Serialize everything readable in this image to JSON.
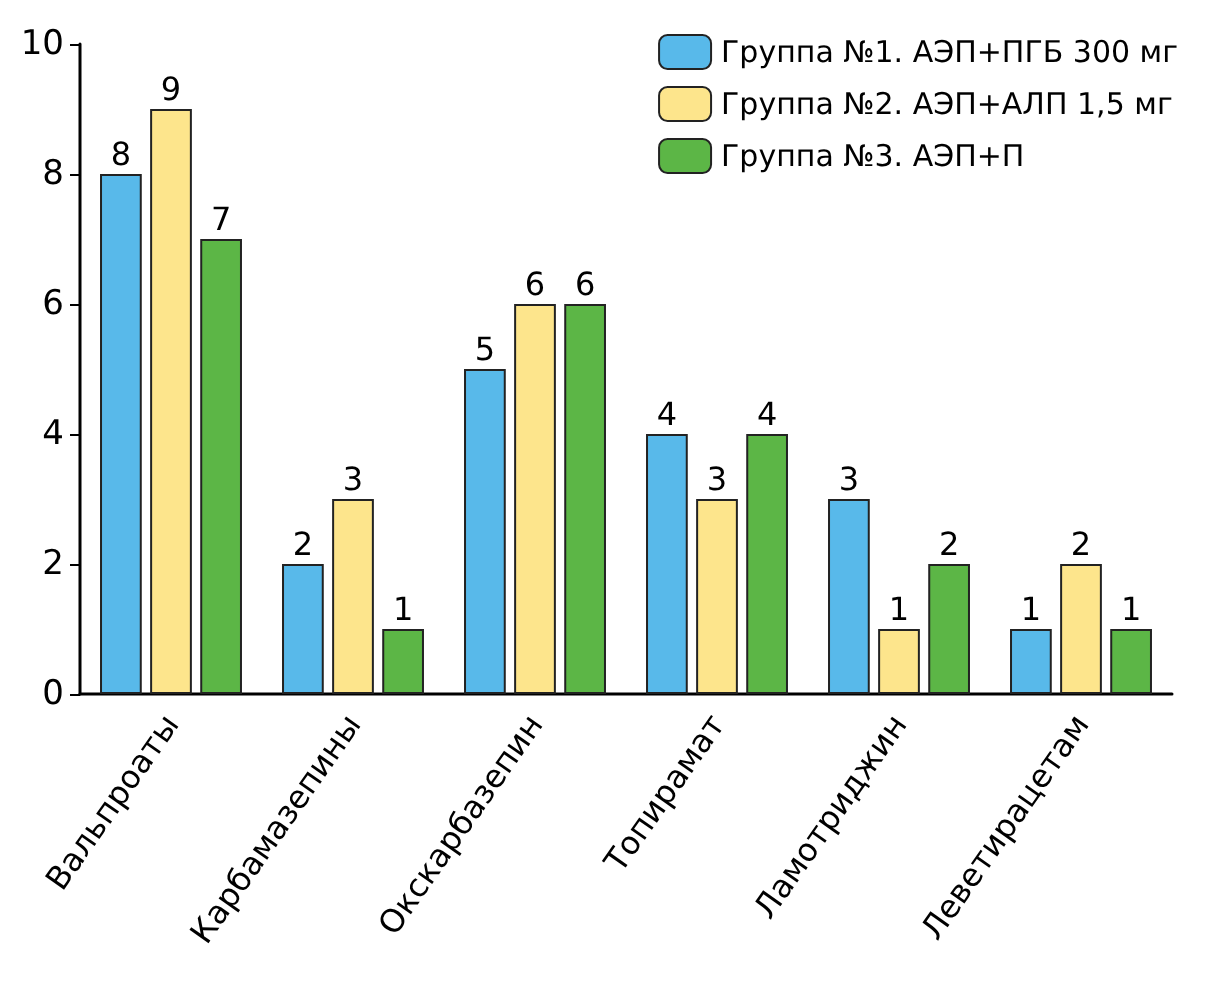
{
  "chart_data": {
    "type": "bar",
    "categories": [
      "Вальпроаты",
      "Карбамазепины",
      "Окскарбазепин",
      "Топирамат",
      "Ламотриджин",
      "Леветирацетам"
    ],
    "series": [
      {
        "name": "Группа №1. АЭП+ПГБ 300 мг",
        "color": "#58b9ea",
        "values": [
          8,
          2,
          5,
          4,
          3,
          1
        ]
      },
      {
        "name": "Группа №2. АЭП+АЛП 1,5 мг",
        "color": "#fde58c",
        "values": [
          9,
          3,
          6,
          3,
          1,
          2
        ]
      },
      {
        "name": "Группа №3. АЭП+П",
        "color": "#5cb646",
        "values": [
          7,
          1,
          6,
          4,
          2,
          1
        ]
      }
    ],
    "ylim": [
      0,
      10
    ],
    "yticks": [
      0,
      2,
      4,
      6,
      8,
      10
    ],
    "grid": false,
    "legend": "top right",
    "data_labels": true
  }
}
